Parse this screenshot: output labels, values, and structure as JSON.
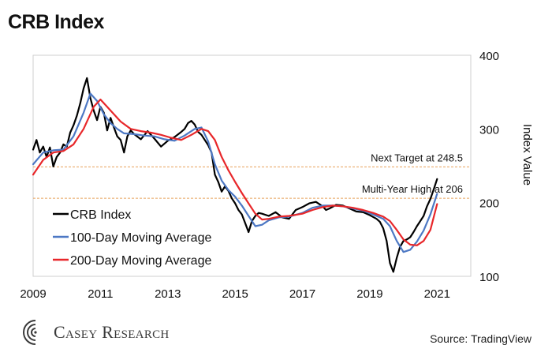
{
  "title": "CRB Index",
  "source": "Source: TradingView",
  "brand": "Casey Research",
  "chart_data": {
    "type": "line",
    "title": "CRB Index",
    "ylabel": "Index Value",
    "xlabel": "",
    "xlim": [
      2009,
      2022
    ],
    "ylim": [
      100,
      400
    ],
    "x_ticks": [
      2009,
      2011,
      2013,
      2015,
      2017,
      2019,
      2021
    ],
    "y_ticks": [
      100,
      200,
      300,
      400
    ],
    "grid": false,
    "legend_position": "bottom-left",
    "series": [
      {
        "name": "CRB Index",
        "color": "#000000",
        "x": [
          2009.0,
          2009.1,
          2009.2,
          2009.3,
          2009.4,
          2009.5,
          2009.6,
          2009.7,
          2009.8,
          2009.9,
          2010.0,
          2010.1,
          2010.2,
          2010.3,
          2010.4,
          2010.5,
          2010.6,
          2010.7,
          2010.8,
          2010.9,
          2011.0,
          2011.1,
          2011.2,
          2011.3,
          2011.4,
          2011.5,
          2011.6,
          2011.7,
          2011.8,
          2011.9,
          2012.0,
          2012.2,
          2012.4,
          2012.6,
          2012.8,
          2013.0,
          2013.2,
          2013.4,
          2013.5,
          2013.6,
          2013.7,
          2013.8,
          2013.9,
          2014.0,
          2014.1,
          2014.2,
          2014.3,
          2014.4,
          2014.5,
          2014.6,
          2014.7,
          2014.8,
          2014.9,
          2015.0,
          2015.1,
          2015.2,
          2015.3,
          2015.4,
          2015.5,
          2015.6,
          2015.7,
          2015.8,
          2016.0,
          2016.2,
          2016.4,
          2016.6,
          2016.8,
          2017.0,
          2017.2,
          2017.4,
          2017.6,
          2017.7,
          2017.8,
          2018.0,
          2018.2,
          2018.4,
          2018.6,
          2018.8,
          2019.0,
          2019.2,
          2019.3,
          2019.4,
          2019.5,
          2019.6,
          2019.7,
          2019.8,
          2019.9,
          2020.0,
          2020.1,
          2020.2,
          2020.3,
          2020.4,
          2020.5,
          2020.6,
          2020.7,
          2020.8,
          2020.9,
          2021.0
        ],
        "y": [
          272,
          285,
          268,
          276,
          262,
          275,
          249,
          262,
          268,
          279,
          276,
          295,
          305,
          318,
          335,
          355,
          369,
          342,
          325,
          312,
          330,
          322,
          298,
          315,
          302,
          290,
          285,
          268,
          290,
          298,
          293,
          286,
          297,
          287,
          276,
          284,
          289,
          296,
          300,
          308,
          311,
          306,
          296,
          292,
          285,
          278,
          268,
          238,
          228,
          215,
          222,
          216,
          206,
          199,
          190,
          184,
          172,
          160,
          175,
          182,
          186,
          185,
          182,
          187,
          180,
          178,
          190,
          194,
          199,
          201,
          195,
          190,
          192,
          197,
          196,
          192,
          188,
          187,
          183,
          178,
          174,
          165,
          148,
          118,
          106,
          125,
          140,
          148,
          150,
          153,
          160,
          168,
          175,
          182,
          195,
          205,
          218,
          232
        ]
      },
      {
        "name": "100-Day Moving Average",
        "color": "#4d78c4",
        "x": [
          2009.0,
          2009.3,
          2009.6,
          2009.9,
          2010.2,
          2010.5,
          2010.7,
          2010.9,
          2011.1,
          2011.3,
          2011.5,
          2011.7,
          2012.0,
          2012.3,
          2012.6,
          2012.9,
          2013.2,
          2013.5,
          2013.8,
          2014.0,
          2014.2,
          2014.4,
          2014.6,
          2014.8,
          2015.0,
          2015.2,
          2015.4,
          2015.6,
          2015.8,
          2016.0,
          2016.3,
          2016.6,
          2017.0,
          2017.3,
          2017.6,
          2017.9,
          2018.2,
          2018.5,
          2018.8,
          2019.1,
          2019.4,
          2019.6,
          2019.8,
          2020.0,
          2020.2,
          2020.4,
          2020.6,
          2020.8,
          2021.0
        ],
        "y": [
          252,
          268,
          271,
          272,
          290,
          322,
          348,
          338,
          320,
          308,
          300,
          294,
          293,
          291,
          290,
          286,
          284,
          291,
          300,
          302,
          283,
          252,
          230,
          217,
          208,
          196,
          182,
          168,
          170,
          176,
          180,
          181,
          186,
          193,
          196,
          196,
          195,
          192,
          189,
          184,
          178,
          168,
          148,
          133,
          136,
          147,
          162,
          184,
          212
        ]
      },
      {
        "name": "200-Day Moving Average",
        "color": "#e8272a",
        "x": [
          2009.0,
          2009.3,
          2009.6,
          2009.9,
          2010.2,
          2010.5,
          2010.8,
          2011.0,
          2011.3,
          2011.6,
          2011.9,
          2012.2,
          2012.5,
          2012.8,
          2013.1,
          2013.4,
          2013.7,
          2014.0,
          2014.2,
          2014.4,
          2014.6,
          2014.8,
          2015.0,
          2015.2,
          2015.4,
          2015.6,
          2015.8,
          2016.0,
          2016.3,
          2016.6,
          2017.0,
          2017.3,
          2017.6,
          2017.9,
          2018.2,
          2018.5,
          2018.8,
          2019.1,
          2019.4,
          2019.6,
          2019.8,
          2020.0,
          2020.2,
          2020.4,
          2020.6,
          2020.8,
          2021.0
        ],
        "y": [
          238,
          258,
          268,
          270,
          279,
          300,
          330,
          340,
          325,
          310,
          300,
          297,
          295,
          292,
          288,
          285,
          292,
          300,
          297,
          285,
          262,
          244,
          228,
          213,
          199,
          185,
          177,
          178,
          181,
          182,
          185,
          190,
          194,
          196,
          195,
          193,
          190,
          186,
          181,
          175,
          163,
          150,
          143,
          142,
          148,
          163,
          198
        ]
      }
    ],
    "annotations": [
      {
        "label": "Next Target at 248.5",
        "y": 248.5
      },
      {
        "label": "Multi-Year High at 206",
        "y": 206
      }
    ]
  }
}
